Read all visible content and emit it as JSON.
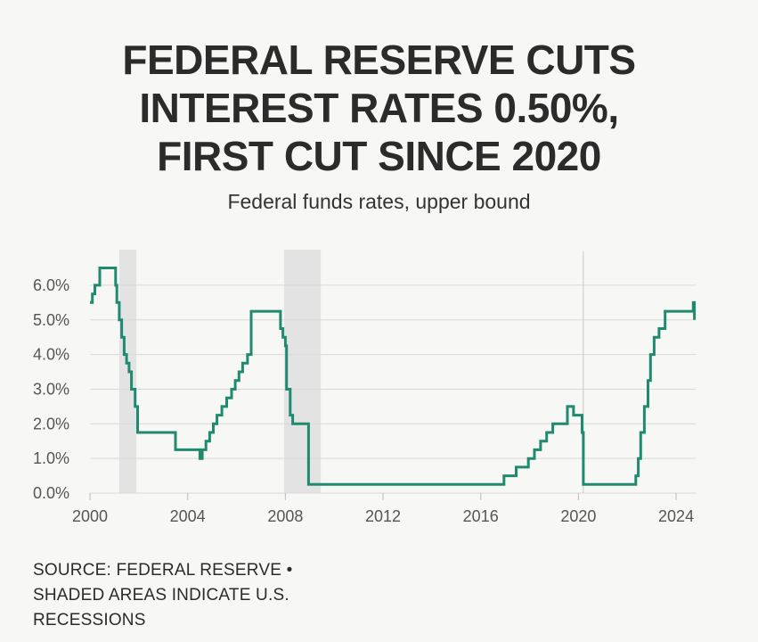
{
  "title_lines": [
    "FEDERAL RESERVE CUTS",
    "INTEREST RATES 0.50%,",
    "FIRST CUT SINCE 2020"
  ],
  "subtitle": "Federal funds rates, upper bound",
  "footnote_lines": [
    "SOURCE: FEDERAL RESERVE •",
    "SHADED AREAS INDICATE U.S.",
    "RECESSIONS"
  ],
  "colors": {
    "line": "#1f8a6e",
    "grid": "#d9d9d9",
    "recession": "#e3e3e3",
    "background": "#f7f7f5"
  },
  "chart_data": {
    "type": "line",
    "title": "FEDERAL RESERVE CUTS INTEREST RATES 0.50%, FIRST CUT SINCE 2020",
    "subtitle": "Federal funds rates, upper bound",
    "xlabel": "",
    "ylabel": "",
    "xlim": [
      2000,
      2024.8
    ],
    "ylim": [
      0,
      6.5
    ],
    "grid": true,
    "yticks": [
      0,
      1,
      2,
      3,
      4,
      5,
      6
    ],
    "ytick_labels": [
      "0.0%",
      "1.0%",
      "2.0%",
      "3.0%",
      "4.0%",
      "5.0%",
      "6.0%"
    ],
    "xticks": [
      2000,
      2004,
      2008,
      2012,
      2016,
      2020,
      2024
    ],
    "xtick_labels": [
      "2000",
      "2004",
      "2008",
      "2012",
      "2016",
      "2020",
      "2024"
    ],
    "recessions": [
      [
        2001.2,
        2001.9
      ],
      [
        2007.95,
        2009.45
      ]
    ],
    "reference_lines_x": [
      2020.2
    ],
    "series": [
      {
        "name": "",
        "x": [
          2000.0,
          2000.1,
          2000.2,
          2000.35,
          2000.4,
          2001.0,
          2001.05,
          2001.1,
          2001.2,
          2001.3,
          2001.4,
          2001.5,
          2001.6,
          2001.7,
          2001.85,
          2001.95,
          2002.9,
          2003.5,
          2004.5,
          2004.6,
          2004.75,
          2004.9,
          2005.05,
          2005.2,
          2005.4,
          2005.6,
          2005.8,
          2005.95,
          2006.1,
          2006.25,
          2006.45,
          2006.6,
          2007.7,
          2007.8,
          2007.9,
          2008.0,
          2008.05,
          2008.2,
          2008.3,
          2008.85,
          2008.95,
          2015.95,
          2016.95,
          2017.2,
          2017.45,
          2017.95,
          2018.2,
          2018.45,
          2018.7,
          2018.95,
          2019.55,
          2019.65,
          2019.8,
          2020.15,
          2020.2,
          2022.2,
          2022.35,
          2022.45,
          2022.55,
          2022.7,
          2022.85,
          2022.95,
          2023.1,
          2023.3,
          2023.55,
          2024.7,
          2024.75
        ],
        "y": [
          5.5,
          5.75,
          6.0,
          6.0,
          6.5,
          6.5,
          6.0,
          5.5,
          5.0,
          4.5,
          4.0,
          3.75,
          3.5,
          3.0,
          2.5,
          1.75,
          1.75,
          1.25,
          1.0,
          1.25,
          1.5,
          1.75,
          2.0,
          2.25,
          2.5,
          2.75,
          3.0,
          3.25,
          3.5,
          3.75,
          4.0,
          5.25,
          5.25,
          4.75,
          4.5,
          4.25,
          3.0,
          2.25,
          2.0,
          2.0,
          0.25,
          0.25,
          0.5,
          0.5,
          0.75,
          1.0,
          1.25,
          1.5,
          1.75,
          2.0,
          2.5,
          2.5,
          2.25,
          1.75,
          0.25,
          0.25,
          0.5,
          1.0,
          1.75,
          2.5,
          3.25,
          4.0,
          4.5,
          4.75,
          5.25,
          5.5,
          5.0
        ]
      }
    ]
  }
}
